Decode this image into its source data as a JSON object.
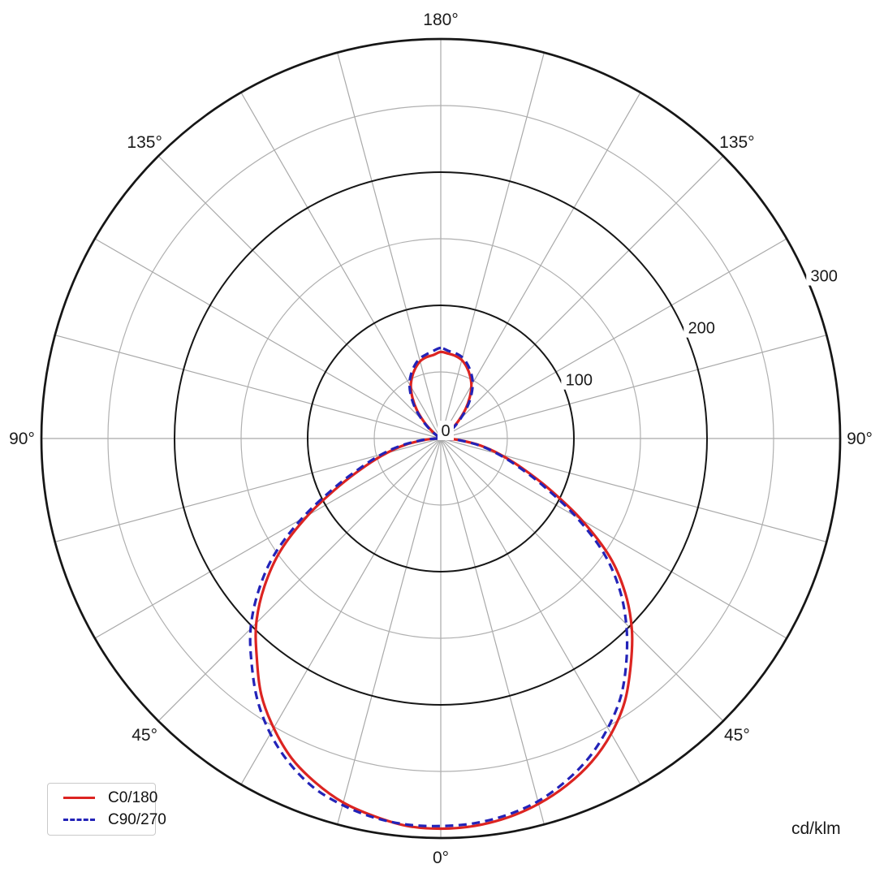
{
  "chart": {
    "unit_label": "cd/klm",
    "center_tick_label": "0",
    "radial_tick_labels": [
      "100",
      "200",
      "300"
    ],
    "angle_labels": [
      {
        "angle": 0,
        "label": "0°"
      },
      {
        "angle": 45,
        "label": "45°"
      },
      {
        "angle": -45,
        "label": "45°"
      },
      {
        "angle": 90,
        "label": "90°"
      },
      {
        "angle": -90,
        "label": "90°"
      },
      {
        "angle": 135,
        "label": "135°"
      },
      {
        "angle": -135,
        "label": "135°"
      },
      {
        "angle": 180,
        "label": "180°"
      }
    ]
  },
  "colors": {
    "c0_series": "#dc2421",
    "c90_series": "#2323b8",
    "grid_rays": "#a9a9a9",
    "grid_minor_circles": "#b0b0b0",
    "grid_major_circles": "#161616",
    "text": "#1a1a1a",
    "background": "#ffffff"
  },
  "chart_data": {
    "type": "line",
    "subtype": "polar-photometric",
    "units": "cd/klm",
    "angle_convention": "0 deg = nadir (down), 180 deg = zenith (up); positive angles = right half plane, negative = left half plane; angular gridlines every 15 deg",
    "r_axis_range": [
      0,
      300
    ],
    "r_major_gridlines": [
      100,
      200,
      300
    ],
    "r_minor_gridlines": [
      50,
      150,
      250
    ],
    "r_tick_labels": [
      0,
      100,
      200,
      300
    ],
    "legend_position": "bottom-left",
    "grid": true,
    "angles": [
      -180,
      -175,
      -170,
      -165,
      -160,
      -155,
      -150,
      -145,
      -140,
      -135,
      -130,
      -125,
      -120,
      -115,
      -110,
      -105,
      -100,
      -95,
      -90,
      -85,
      -80,
      -75,
      -70,
      -65,
      -60,
      -55,
      -50,
      -45,
      -40,
      -35,
      -30,
      -25,
      -20,
      -15,
      -10,
      -5,
      0,
      5,
      10,
      15,
      20,
      25,
      30,
      35,
      40,
      45,
      50,
      55,
      60,
      65,
      70,
      75,
      80,
      85,
      90,
      95,
      100,
      105,
      110,
      115,
      120,
      125,
      130,
      135,
      140,
      145,
      150,
      155,
      160,
      165,
      170,
      175,
      180
    ],
    "series": [
      {
        "name": "C0/180",
        "color": "#dc2421",
        "line_style": "solid",
        "values": [
          65,
          63,
          62,
          60,
          56,
          51,
          45,
          37,
          28,
          18,
          9,
          2,
          0,
          0,
          0,
          0,
          0,
          1,
          3,
          12,
          27,
          42,
          60,
          84,
          115,
          147,
          173,
          196,
          215,
          235,
          251,
          265,
          275,
          283,
          288,
          292,
          293,
          292,
          289,
          284,
          277,
          268,
          256,
          241,
          222,
          203,
          181,
          155,
          122,
          90,
          65,
          46,
          30,
          14,
          3,
          1,
          0,
          0,
          0,
          0,
          0,
          3,
          10,
          19,
          29,
          38,
          46,
          52,
          57,
          61,
          63,
          64,
          65
        ]
      },
      {
        "name": "C90/270",
        "color": "#2323b8",
        "line_style": "dashed",
        "values": [
          68,
          66,
          64,
          62,
          58,
          53,
          47,
          39,
          30,
          20,
          11,
          3,
          0,
          0,
          0,
          0,
          0,
          1,
          3,
          14,
          30,
          46,
          64,
          89,
          121,
          153,
          179,
          202,
          221,
          240,
          256,
          269,
          279,
          285,
          289,
          291,
          291,
          290,
          287,
          282,
          274,
          264,
          251,
          236,
          217,
          197,
          175,
          149,
          117,
          86,
          62,
          44,
          29,
          13,
          3,
          1,
          0,
          0,
          0,
          0,
          0,
          4,
          12,
          21,
          31,
          40,
          48,
          54,
          59,
          63,
          65,
          66,
          68
        ]
      }
    ]
  }
}
